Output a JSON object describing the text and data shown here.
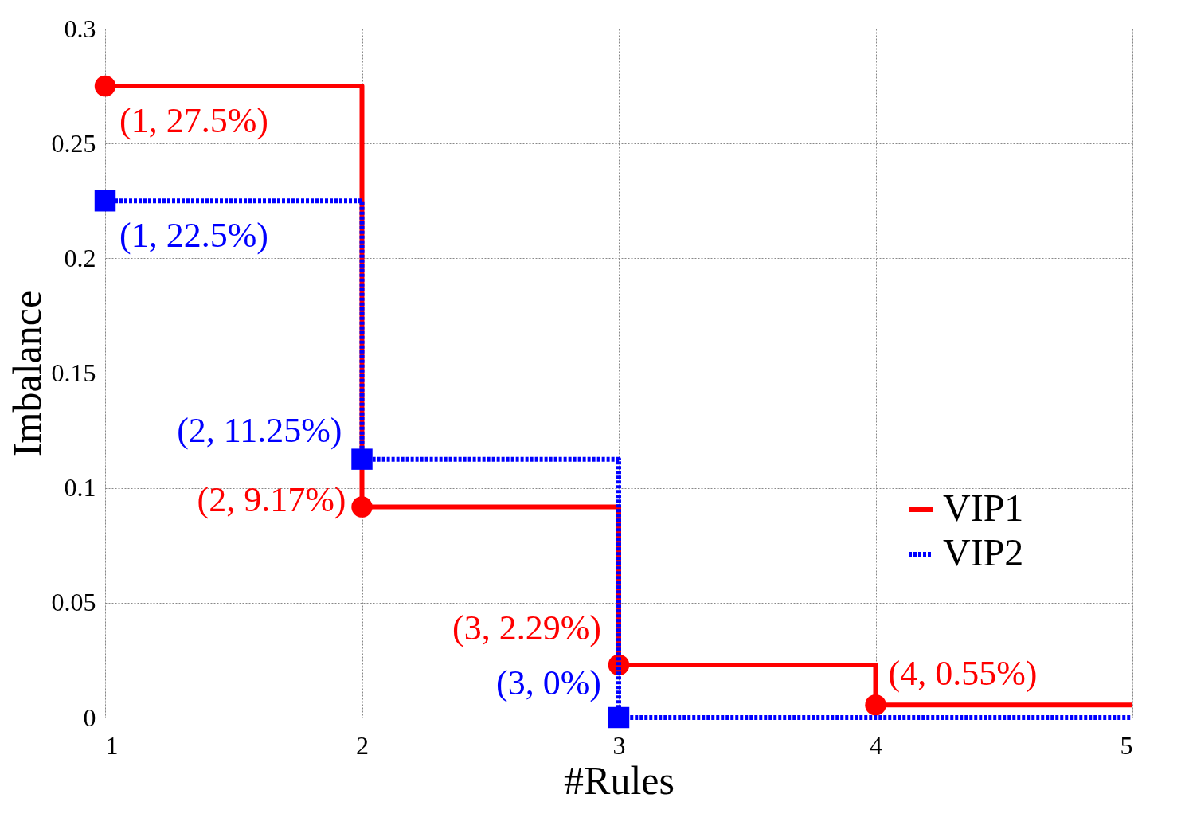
{
  "chart_data": {
    "type": "step",
    "xlabel": "#Rules",
    "ylabel": "Imbalance",
    "x": [
      1,
      2,
      3,
      4,
      5
    ],
    "xlim": [
      1,
      5
    ],
    "xticks": [
      1,
      2,
      3,
      4,
      5
    ],
    "ylim": [
      0,
      0.3
    ],
    "yticks": [
      0,
      0.05,
      0.1,
      0.15,
      0.2,
      0.25,
      0.3
    ],
    "grid": true,
    "legend": "bottom right",
    "series": [
      {
        "name": "VIP1",
        "color": "#ff0000",
        "line_style": "solid",
        "marker": "circle",
        "values": [
          0.275,
          0.0917,
          0.0229,
          0.0055,
          0.0055
        ],
        "value_labels": [
          "(1, 27.5%)",
          "(2, 9.17%)",
          "(3, 2.29%)",
          "(4, 0.55%)",
          null
        ]
      },
      {
        "name": "VIP2",
        "color": "#0000ff",
        "line_style": "dotted",
        "marker": "square",
        "values": [
          0.225,
          0.1125,
          0,
          0,
          0
        ],
        "value_labels": [
          "(1, 22.5%)",
          "(2, 11.25%)",
          "(3, 0%)",
          null,
          null
        ]
      }
    ]
  }
}
